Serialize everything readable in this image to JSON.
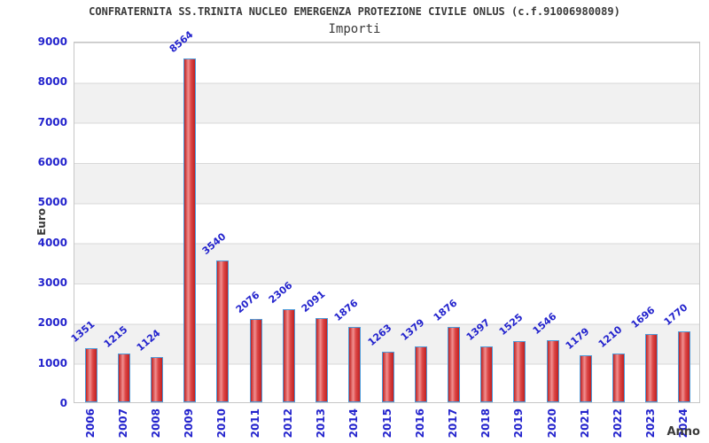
{
  "header": {
    "title": "CONFRATERNITA SS.TRINITA NUCLEO EMERGENZA PROTEZIONE CIVILE ONLUS (c.f.91006980089)",
    "subtitle": "Importi"
  },
  "chart_data": {
    "type": "bar",
    "title": "CONFRATERNITA SS.TRINITA NUCLEO EMERGENZA PROTEZIONE CIVILE ONLUS (c.f.91006980089)",
    "subtitle": "Importi",
    "xlabel": "Anno",
    "ylabel": "Euro",
    "categories": [
      "2006",
      "2007",
      "2008",
      "2009",
      "2010",
      "2011",
      "2012",
      "2013",
      "2014",
      "2015",
      "2016",
      "2017",
      "2018",
      "2019",
      "2020",
      "2021",
      "2022",
      "2023",
      "2024"
    ],
    "values": [
      1351,
      1215,
      1124,
      8564,
      3540,
      2076,
      2306,
      2091,
      1876,
      1263,
      1379,
      1876,
      1397,
      1525,
      1546,
      1179,
      1210,
      1696,
      1770
    ],
    "ylim": [
      0,
      9000
    ],
    "yticks": [
      0,
      1000,
      2000,
      3000,
      4000,
      5000,
      6000,
      7000,
      8000,
      9000
    ],
    "grid": "horizontal gridlines with alternating white/gray bands every 1000",
    "legend_position": "none",
    "value_labels": "above each bar, rotated, blue",
    "x_tick_rotation": -90
  },
  "colors": {
    "axis_label": "#2323cd",
    "text": "#3a3a3a",
    "band": "#f1f1f1",
    "gridline": "#d8d8d8",
    "plot_border": "#c6c6c6",
    "bar_border": "#4e9ad8",
    "bar_dark": "#c02020",
    "bar_light": "#f19090",
    "bar_mid": "#dd4848"
  }
}
